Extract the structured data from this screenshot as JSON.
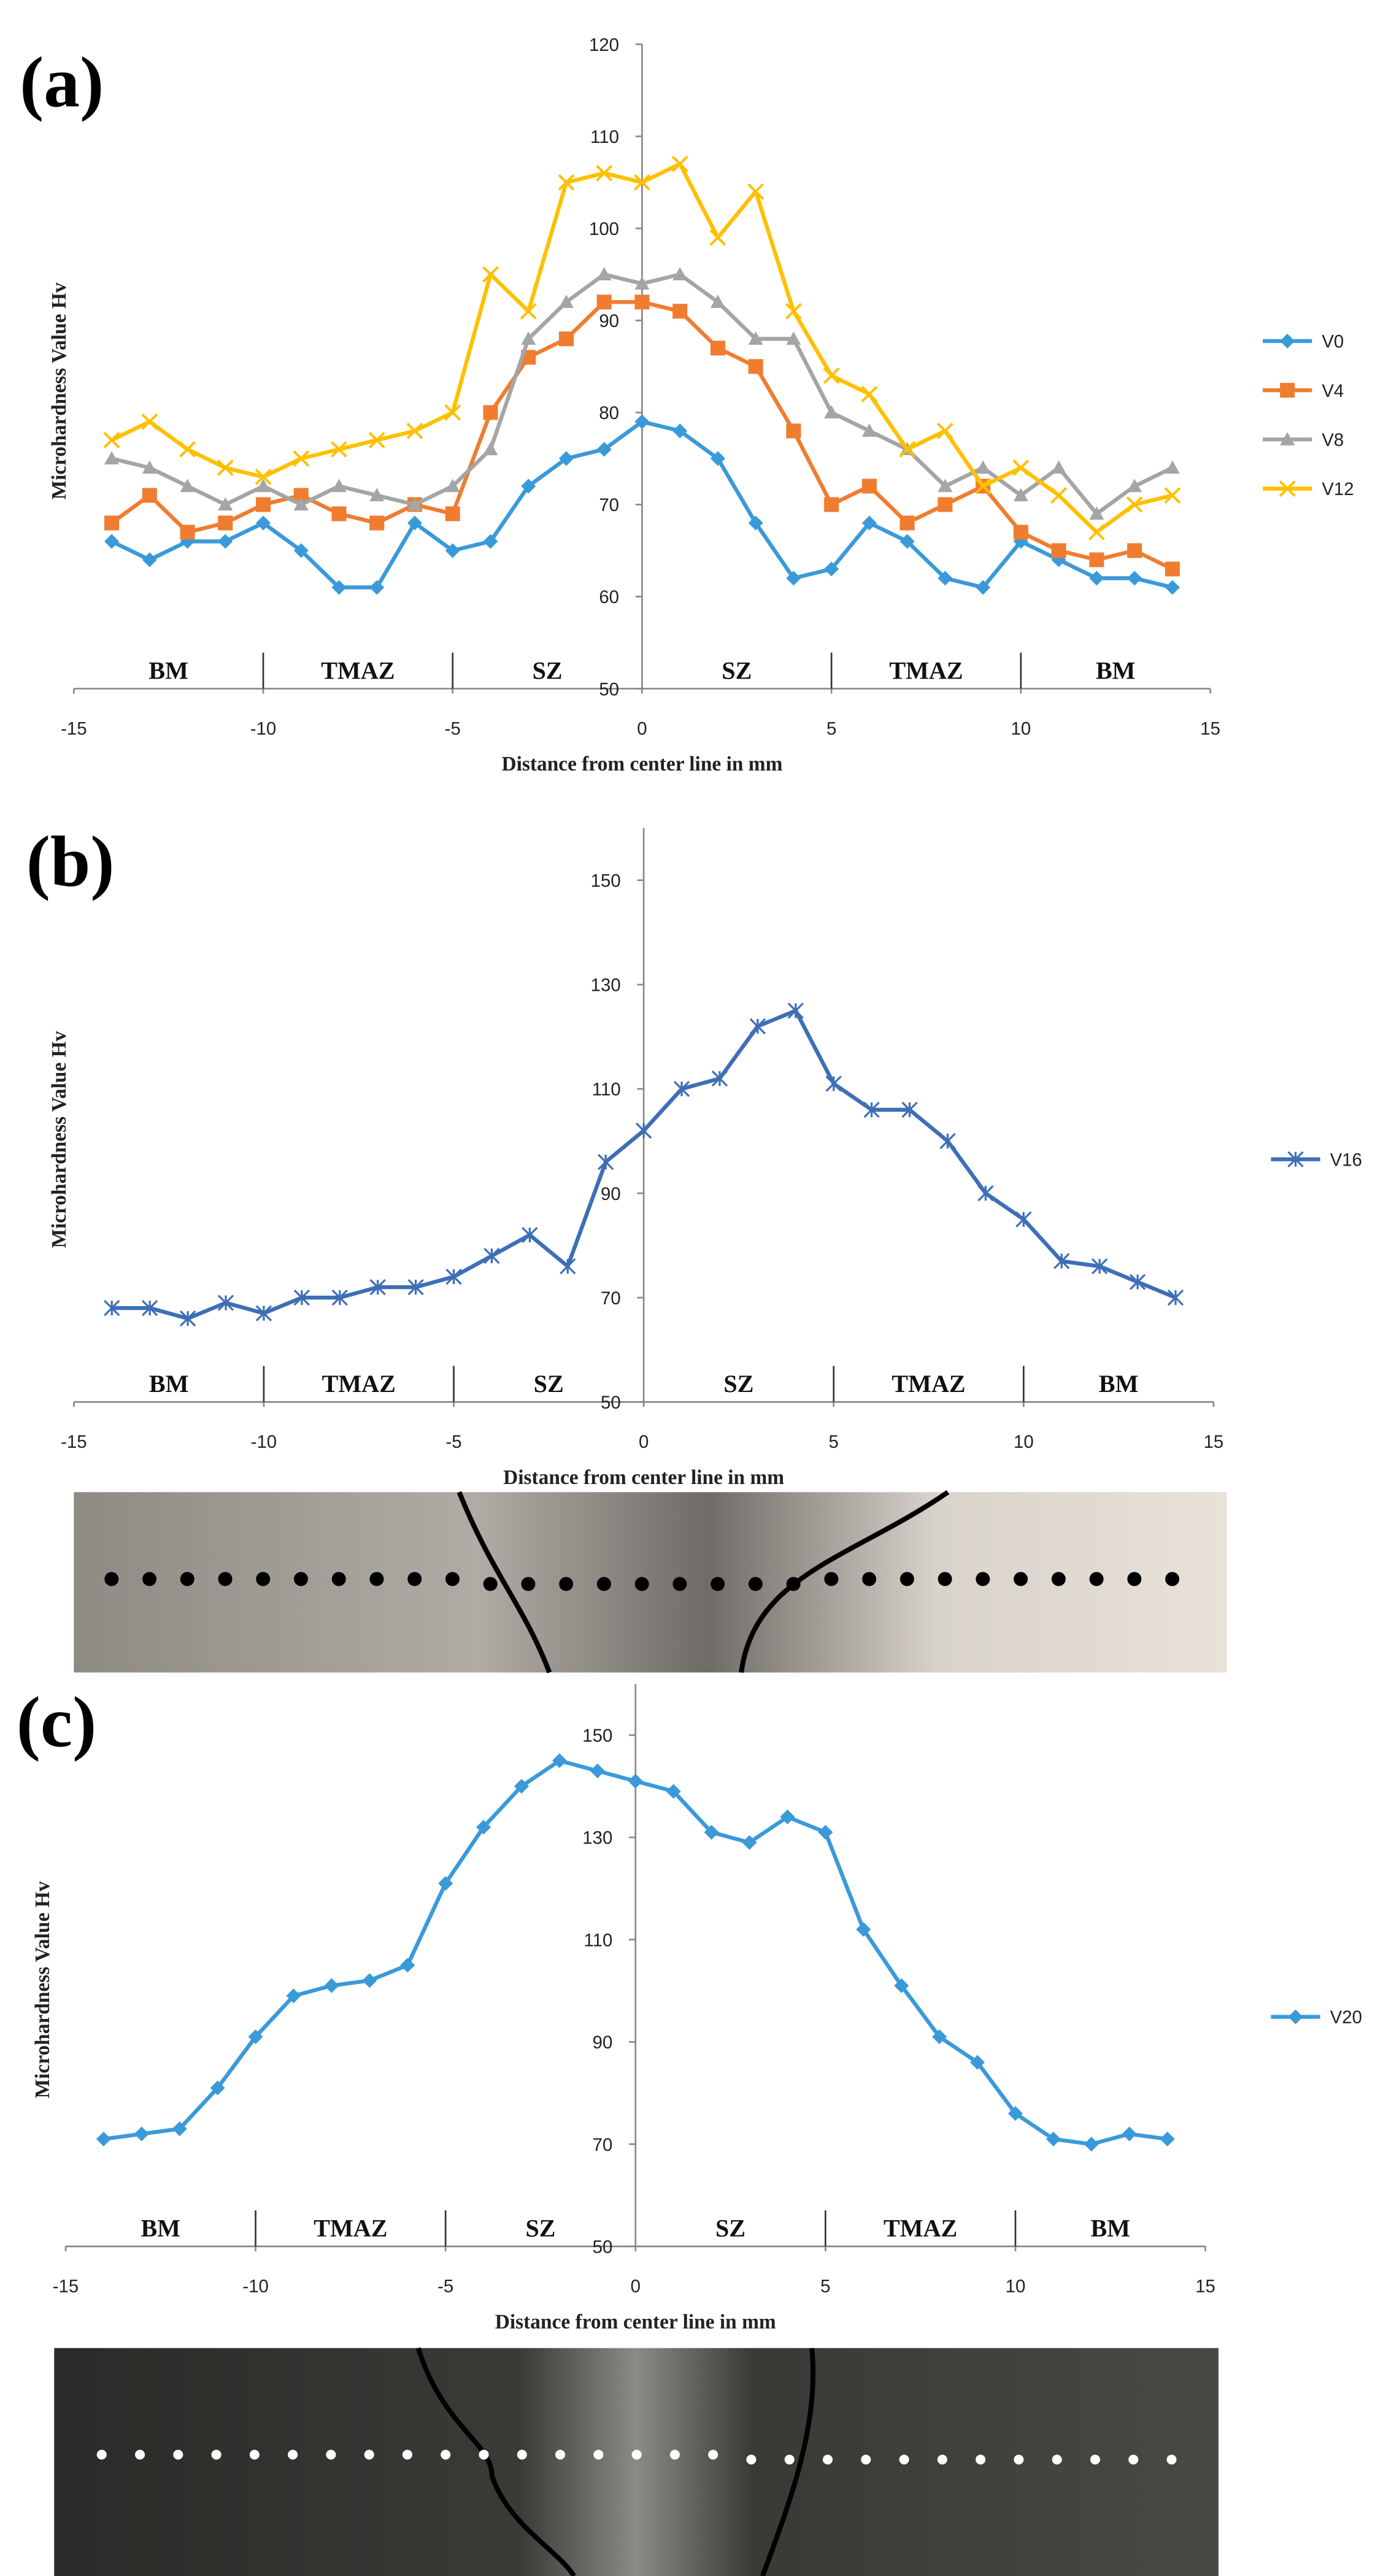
{
  "chart_data": [
    {
      "type": "line",
      "panel": "(a)",
      "ylabel": "Microhardness Value Hv",
      "xlabel": "Distance from center line in mm",
      "zones": [
        "BM",
        "TMAZ",
        "SZ",
        "SZ",
        "TMAZ",
        "BM"
      ],
      "x": [
        -14,
        -13,
        -12,
        -11,
        -10,
        -9,
        -8,
        -7,
        -6,
        -5,
        -4,
        -3,
        -2,
        -1,
        0,
        1,
        2,
        3,
        4,
        5,
        6,
        7,
        8,
        9,
        10,
        11,
        12,
        13,
        14
      ],
      "series": [
        {
          "name": "V0",
          "color": "#3a9ad9",
          "marker": "diamond",
          "values": [
            66,
            64,
            66,
            66,
            68,
            65,
            61,
            61,
            68,
            65,
            66,
            72,
            75,
            76,
            79,
            78,
            75,
            68,
            62,
            63,
            68,
            66,
            62,
            61,
            66,
            64,
            62,
            62,
            61
          ]
        },
        {
          "name": "V4",
          "color": "#f07c30",
          "marker": "square",
          "values": [
            68,
            71,
            67,
            68,
            70,
            71,
            69,
            68,
            70,
            69,
            80,
            86,
            88,
            92,
            92,
            91,
            87,
            85,
            78,
            70,
            72,
            68,
            70,
            72,
            67,
            65,
            64,
            65,
            63
          ]
        },
        {
          "name": "V8",
          "color": "#a5a5a5",
          "marker": "triangle",
          "values": [
            75,
            74,
            72,
            70,
            72,
            70,
            72,
            71,
            70,
            72,
            76,
            88,
            92,
            95,
            94,
            95,
            92,
            88,
            88,
            80,
            78,
            76,
            72,
            74,
            71,
            74,
            69,
            72,
            74
          ]
        },
        {
          "name": "V12",
          "color": "#ffc000",
          "marker": "x",
          "values": [
            77,
            79,
            76,
            74,
            73,
            75,
            76,
            77,
            78,
            80,
            95,
            91,
            105,
            106,
            105,
            107,
            99,
            104,
            91,
            84,
            82,
            76,
            78,
            72,
            74,
            71,
            67,
            70,
            71
          ]
        }
      ],
      "xlim": [
        -15,
        15
      ],
      "xticks": [
        -15,
        -10,
        -5,
        0,
        5,
        10,
        15
      ],
      "ylim": [
        50,
        120
      ],
      "yticks": [
        50,
        60,
        70,
        80,
        90,
        100,
        110,
        120
      ],
      "legend": "right"
    },
    {
      "type": "line",
      "panel": "(b)",
      "ylabel": "Microhardness Value Hv",
      "xlabel": "Distance from center line in mm",
      "zones": [
        "BM",
        "TMAZ",
        "SZ",
        "SZ",
        "TMAZ",
        "BM"
      ],
      "x": [
        -14,
        -13,
        -12,
        -11,
        -10,
        -9,
        -8,
        -7,
        -6,
        -5,
        -4,
        -3,
        -2,
        -1,
        0,
        1,
        2,
        3,
        4,
        5,
        6,
        7,
        8,
        9,
        10,
        11,
        12,
        13,
        14
      ],
      "series": [
        {
          "name": "V16",
          "color": "#3d6fb6",
          "marker": "star",
          "values": [
            68,
            68,
            66,
            69,
            67,
            70,
            70,
            72,
            72,
            74,
            78,
            82,
            76,
            96,
            102,
            110,
            112,
            122,
            125,
            111,
            106,
            106,
            100,
            90,
            85,
            77,
            76,
            73,
            70
          ]
        }
      ],
      "xlim": [
        -15,
        15
      ],
      "xticks": [
        -15,
        -10,
        -5,
        0,
        5,
        10,
        15
      ],
      "ylim": [
        50,
        160
      ],
      "yticks": [
        50,
        70,
        90,
        110,
        130,
        150
      ],
      "legend": "right"
    },
    {
      "type": "line",
      "panel": "(c)",
      "ylabel": "Microhardness Value Hv",
      "xlabel": "Distance from center line in mm",
      "zones": [
        "BM",
        "TMAZ",
        "SZ",
        "SZ",
        "TMAZ",
        "BM"
      ],
      "x": [
        -14,
        -13,
        -12,
        -11,
        -10,
        -9,
        -8,
        -7,
        -6,
        -5,
        -4,
        -3,
        -2,
        -1,
        0,
        1,
        2,
        3,
        4,
        5,
        6,
        7,
        8,
        9,
        10,
        11,
        12,
        13,
        14
      ],
      "series": [
        {
          "name": "V20",
          "color": "#3a9ad9",
          "marker": "diamond",
          "values": [
            71,
            72,
            73,
            81,
            91,
            99,
            101,
            102,
            105,
            121,
            132,
            140,
            145,
            143,
            141,
            139,
            131,
            129,
            134,
            131,
            112,
            101,
            91,
            86,
            76,
            71,
            70,
            72,
            71
          ]
        }
      ],
      "xlim": [
        -15,
        15
      ],
      "xticks": [
        -15,
        -10,
        -5,
        0,
        5,
        10,
        15
      ],
      "ylim": [
        50,
        160
      ],
      "yticks": [
        50,
        70,
        90,
        110,
        130,
        150
      ],
      "legend": "right"
    }
  ]
}
